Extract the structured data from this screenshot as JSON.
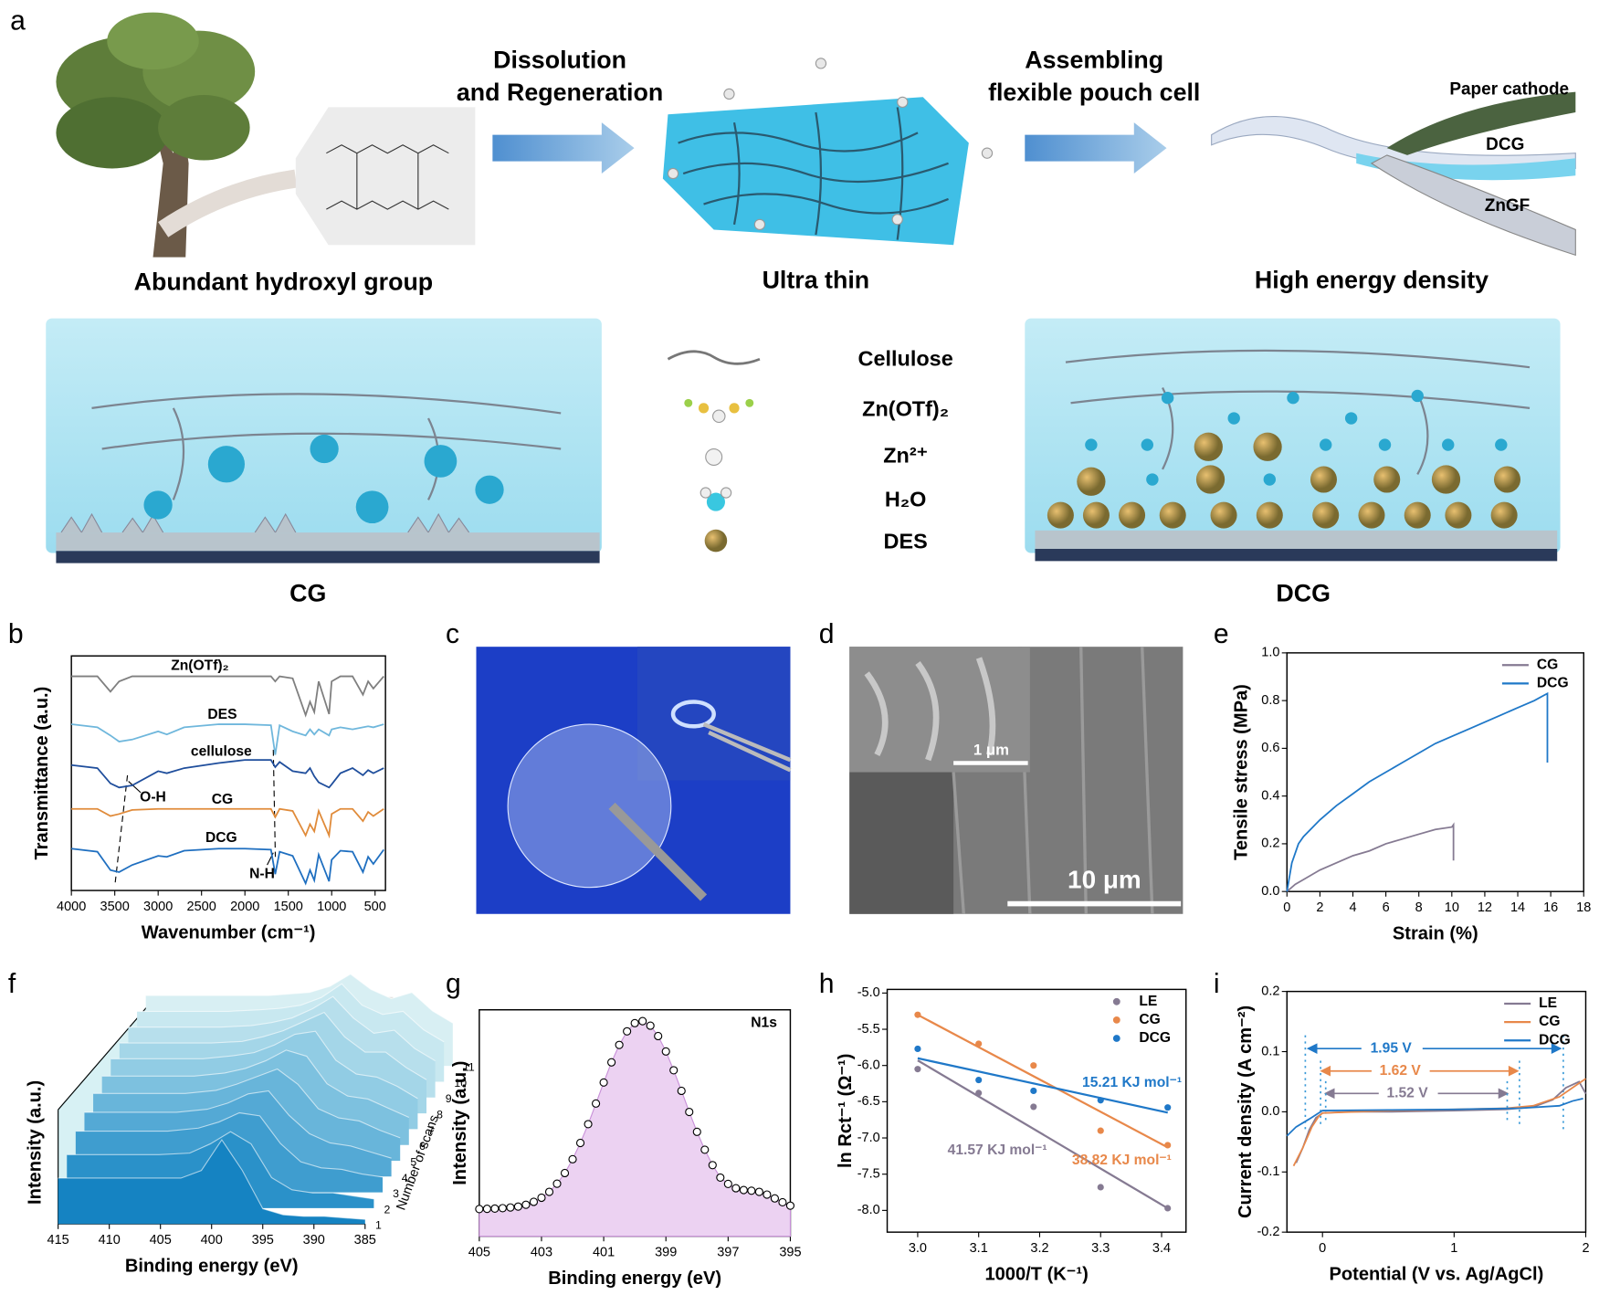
{
  "figure": {
    "panel_a": {
      "label": "a",
      "arrow_1": [
        "Dissolution",
        "and Regeneration"
      ],
      "arrow_2": [
        "Assembling",
        "flexible pouch cell"
      ],
      "captions": [
        "Abundant hydroxyl group",
        "Ultra thin",
        "High energy density"
      ],
      "cell_layers": [
        "Paper  cathode",
        "DCG",
        "ZnGF"
      ],
      "legend": [
        "Cellulose",
        "Zn(OTf)₂",
        "Zn²⁺",
        "H₂O",
        "DES"
      ],
      "gels": [
        "CG",
        "DCG"
      ]
    },
    "panel_c": {
      "label": "c"
    },
    "panel_d": {
      "label": "d",
      "scale_bars": [
        "1 μm",
        "10 μm"
      ]
    }
  },
  "chart_data": [
    {
      "label": "b",
      "type": "line",
      "xlabel": "Wavenumber (cm⁻¹)",
      "ylabel": "Transmittance (a.u.)",
      "xlim": [
        4000,
        380
      ],
      "ylim": [
        0,
        23
      ],
      "xticks": [
        4000,
        3500,
        3000,
        2500,
        2000,
        1500,
        1000,
        500
      ],
      "x": [
        4000,
        3700,
        3550,
        3450,
        3300,
        3000,
        2900,
        2700,
        2300,
        2000,
        1700,
        1650,
        1600,
        1450,
        1300,
        1250,
        1200,
        1150,
        1030,
        1000,
        900,
        760,
        640,
        580,
        520,
        400
      ],
      "series": [
        {
          "name": "Zn(OTf)₂",
          "color": "#7f7f7f",
          "values": [
            21,
            21,
            19.5,
            20.5,
            21,
            21,
            21,
            21,
            21,
            21,
            21,
            20.5,
            21,
            20.8,
            17.2,
            18.5,
            17.5,
            20.5,
            17.3,
            20.5,
            21,
            21,
            19.2,
            20.5,
            19.8,
            21
          ]
        },
        {
          "name": "DES",
          "color": "#6fb7dc",
          "values": [
            16.3,
            16,
            15.2,
            14.6,
            14.8,
            15.6,
            15.3,
            16,
            16.3,
            16.3,
            16.2,
            13.3,
            16.2,
            15.6,
            15.2,
            15.8,
            15.3,
            15.8,
            15.2,
            15.8,
            16,
            15.8,
            16,
            16.1,
            16,
            16.3
          ]
        },
        {
          "name": "cellulose",
          "color": "#1f4e9c",
          "values": [
            12.3,
            12,
            10.5,
            10.1,
            10.3,
            11.7,
            11.5,
            12,
            12.5,
            12.8,
            12.8,
            12.1,
            12.6,
            11.7,
            11.5,
            12,
            11.2,
            10.6,
            10.1,
            10.4,
            11.5,
            12,
            11.3,
            11.8,
            11.5,
            12
          ]
        },
        {
          "name": "CG",
          "color": "#e08b3a",
          "values": [
            8,
            8,
            7.3,
            7.5,
            7.9,
            8,
            8,
            8,
            8,
            8,
            8,
            7.2,
            8,
            7.8,
            5.4,
            6.5,
            5.8,
            7.8,
            5.4,
            7.5,
            8,
            8,
            6.8,
            7.7,
            7.3,
            8
          ]
        },
        {
          "name": "DCG",
          "color": "#1f6fc0",
          "values": [
            4.1,
            3.8,
            2,
            1.8,
            2.5,
            3.4,
            3.3,
            3.9,
            4.1,
            4.1,
            4,
            1.6,
            3.8,
            3.4,
            0.7,
            2,
            1,
            3.5,
            0.9,
            3,
            3.9,
            3.8,
            1.8,
            3.3,
            2.6,
            4
          ]
        }
      ],
      "annotations": [
        "O-H",
        "N-H"
      ]
    },
    {
      "label": "e",
      "type": "line",
      "xlabel": "Strain (%)",
      "ylabel": "Tensile stress (MPa)",
      "xlim": [
        0,
        18
      ],
      "ylim": [
        0,
        1
      ],
      "xticks": [
        0,
        2,
        4,
        6,
        8,
        10,
        12,
        14,
        16,
        18
      ],
      "yticks": [
        {
          "value": 0,
          "label": "0.0"
        },
        0.2,
        0.4,
        0.6,
        0.8,
        {
          "value": 1,
          "label": "1.0"
        }
      ],
      "legend": "upper right",
      "series": [
        {
          "name": "CG",
          "color": "#857a92",
          "x": [
            0,
            0.5,
            1,
            2,
            3,
            4,
            5,
            6,
            7,
            8,
            9,
            10,
            10.1,
            10.1
          ],
          "values": [
            0,
            0.03,
            0.05,
            0.09,
            0.12,
            0.15,
            0.17,
            0.2,
            0.22,
            0.24,
            0.26,
            0.27,
            0.28,
            0.13
          ]
        },
        {
          "name": "DCG",
          "color": "#1f78c8",
          "x": [
            0,
            0.3,
            0.7,
            1,
            2,
            3,
            4,
            5,
            6,
            7,
            8,
            9,
            10,
            11,
            12,
            13,
            14,
            15,
            15.8,
            15.8
          ],
          "values": [
            0,
            0.12,
            0.2,
            0.23,
            0.3,
            0.36,
            0.41,
            0.46,
            0.5,
            0.54,
            0.58,
            0.62,
            0.65,
            0.68,
            0.71,
            0.74,
            0.77,
            0.8,
            0.83,
            0.54
          ]
        }
      ]
    },
    {
      "label": "f",
      "type": "waterfall",
      "xlabel": "Binding energy (eV)",
      "ylabel": "Intensity (a.u.)",
      "zlabel": "Number of scans",
      "xlim": [
        415,
        385
      ],
      "ylim": [
        0,
        1
      ],
      "xticks": [
        415,
        410,
        405,
        400,
        395,
        390,
        385
      ],
      "x": [
        415,
        412,
        409,
        406,
        403,
        401,
        399,
        397,
        395,
        393,
        391,
        389,
        387,
        385
      ],
      "series": [
        {
          "name": "1",
          "color": "#1583c2",
          "values": [
            0.3,
            0.3,
            0.3,
            0.3,
            0.3,
            0.35,
            0.55,
            0.35,
            0.1,
            0.06,
            0.05,
            0.05,
            0.04,
            0.03
          ]
        },
        {
          "name": "2",
          "color": "#2a91c9",
          "values": [
            0.35,
            0.35,
            0.35,
            0.35,
            0.36,
            0.42,
            0.5,
            0.42,
            0.2,
            0.12,
            0.1,
            0.1,
            0.08,
            0.06
          ]
        },
        {
          "name": "3",
          "color": "#3f9dcf",
          "values": [
            0.4,
            0.4,
            0.4,
            0.4,
            0.42,
            0.46,
            0.52,
            0.5,
            0.32,
            0.2,
            0.16,
            0.15,
            0.12,
            0.1
          ]
        },
        {
          "name": "4",
          "color": "#54a9d5",
          "values": [
            0.42,
            0.42,
            0.42,
            0.42,
            0.44,
            0.48,
            0.54,
            0.56,
            0.4,
            0.28,
            0.22,
            0.2,
            0.16,
            0.12
          ]
        },
        {
          "name": "5",
          "color": "#68b5da",
          "values": [
            0.44,
            0.44,
            0.44,
            0.44,
            0.46,
            0.5,
            0.55,
            0.6,
            0.5,
            0.34,
            0.28,
            0.26,
            0.2,
            0.15
          ]
        },
        {
          "name": "6",
          "color": "#7dc1df",
          "values": [
            0.45,
            0.45,
            0.45,
            0.45,
            0.47,
            0.5,
            0.55,
            0.62,
            0.58,
            0.4,
            0.32,
            0.3,
            0.24,
            0.18
          ]
        },
        {
          "name": "7",
          "color": "#91cce4",
          "values": [
            0.46,
            0.46,
            0.46,
            0.46,
            0.48,
            0.5,
            0.55,
            0.62,
            0.64,
            0.45,
            0.36,
            0.34,
            0.28,
            0.2
          ]
        },
        {
          "name": "8",
          "color": "#a4d6e8",
          "values": [
            0.46,
            0.46,
            0.46,
            0.46,
            0.47,
            0.5,
            0.54,
            0.6,
            0.66,
            0.5,
            0.4,
            0.4,
            0.3,
            0.22
          ]
        },
        {
          "name": "9",
          "color": "#b7dfec",
          "values": [
            0.46,
            0.46,
            0.46,
            0.46,
            0.47,
            0.49,
            0.52,
            0.58,
            0.66,
            0.52,
            0.42,
            0.44,
            0.32,
            0.24
          ]
        },
        {
          "name": "10",
          "color": "#c8e8f0",
          "values": [
            0.46,
            0.46,
            0.46,
            0.46,
            0.47,
            0.48,
            0.5,
            0.55,
            0.64,
            0.5,
            0.44,
            0.46,
            0.34,
            0.26
          ]
        },
        {
          "name": "11",
          "color": "#d8eff3",
          "values": [
            0.46,
            0.46,
            0.46,
            0.46,
            0.46,
            0.47,
            0.48,
            0.52,
            0.6,
            0.5,
            0.44,
            0.48,
            0.36,
            0.28
          ]
        }
      ]
    },
    {
      "label": "g",
      "type": "scatter",
      "xlabel": "Binding energy (eV)",
      "ylabel": "Intensity (a.u.)",
      "xlim": [
        405,
        395
      ],
      "ylim": [
        0,
        1
      ],
      "xticks": [
        405,
        403,
        401,
        399,
        397,
        395
      ],
      "area": true,
      "x": [
        405,
        404.75,
        404.5,
        404.25,
        404,
        403.75,
        403.5,
        403.25,
        403,
        402.75,
        402.5,
        402.25,
        402,
        401.75,
        401.5,
        401.25,
        401,
        400.75,
        400.5,
        400.25,
        400,
        399.75,
        399.5,
        399.25,
        399,
        398.75,
        398.5,
        398.25,
        398,
        397.75,
        397.5,
        397.25,
        397,
        396.75,
        396.5,
        396.25,
        396,
        395.75,
        395.5,
        395.25,
        395
      ],
      "series": [
        {
          "color": "#000000",
          "fill": "#ecd2f2",
          "values": [
            0.12,
            0.121,
            0.122,
            0.124,
            0.127,
            0.131,
            0.139,
            0.152,
            0.17,
            0.196,
            0.232,
            0.279,
            0.34,
            0.412,
            0.495,
            0.586,
            0.679,
            0.768,
            0.845,
            0.905,
            0.941,
            0.95,
            0.93,
            0.884,
            0.816,
            0.733,
            0.642,
            0.549,
            0.461,
            0.382,
            0.314,
            0.259,
            0.231,
            0.212,
            0.204,
            0.201,
            0.196,
            0.184,
            0.167,
            0.15,
            0.135
          ]
        }
      ],
      "annotations": [
        "N1s"
      ]
    },
    {
      "label": "h",
      "type": "scatter",
      "xlabel": "1000/T (K⁻¹)",
      "ylabel": "ln Rct⁻¹ (Ω⁻¹)",
      "xlim": [
        2.95,
        3.44
      ],
      "ylim": [
        -8.3,
        -4.95
      ],
      "xticks": [
        {
          "value": 3,
          "label": "3.0"
        },
        3.1,
        3.2,
        3.3,
        3.4
      ],
      "yticks": [
        {
          "value": -5,
          "label": "-5.0"
        },
        -5.5,
        {
          "value": -6,
          "label": "-6.0"
        },
        -6.5,
        {
          "value": -7,
          "label": "-7.0"
        },
        -7.5,
        {
          "value": -8,
          "label": "-8.0"
        }
      ],
      "legend": "upper right",
      "series": [
        {
          "name": "LE",
          "color": "#857a92",
          "x": [
            3.0,
            3.1,
            3.19,
            3.3,
            3.41
          ],
          "values": [
            -6.05,
            -6.38,
            -6.57,
            -7.68,
            -7.97
          ],
          "fit_x": [
            3.0,
            3.41
          ],
          "fit_values": [
            -5.93,
            -7.97
          ]
        },
        {
          "name": "CG",
          "color": "#e8884a",
          "x": [
            3.0,
            3.1,
            3.19,
            3.3,
            3.41
          ],
          "values": [
            -5.3,
            -5.7,
            -6.0,
            -6.9,
            -7.1
          ],
          "fit_x": [
            3.0,
            3.41
          ],
          "fit_values": [
            -5.3,
            -7.13
          ]
        },
        {
          "name": "DCG",
          "color": "#1f78c8",
          "x": [
            3.0,
            3.1,
            3.19,
            3.3,
            3.41
          ],
          "values": [
            -5.77,
            -6.2,
            -6.35,
            -6.48,
            -6.58
          ],
          "fit_x": [
            3.0,
            3.41
          ],
          "fit_values": [
            -5.9,
            -6.65
          ]
        }
      ],
      "annotations": [
        {
          "text": "15.21 KJ mol⁻¹",
          "color": "#1f78c8"
        },
        {
          "text": "38.82 KJ mol⁻¹",
          "color": "#e8884a"
        },
        {
          "text": "41.57 KJ mol⁻¹",
          "color": "#857a92"
        }
      ]
    },
    {
      "label": "i",
      "type": "line",
      "xlabel": "Potential (V vs. Ag/AgCl)",
      "ylabel": "Current density (A cm⁻²)",
      "xlim": [
        -0.27,
        2
      ],
      "ylim": [
        -0.2,
        0.2
      ],
      "xticks": [
        0,
        1,
        2
      ],
      "yticks": [
        -0.2,
        -0.1,
        {
          "value": 0,
          "label": "0.0"
        },
        0.1,
        0.2
      ],
      "legend": "upper right",
      "series": [
        {
          "name": "LE",
          "color": "#857a92",
          "x": [
            -0.2,
            -0.15,
            -0.1,
            -0.05,
            0,
            0.2,
            0.5,
            1,
            1.4,
            1.6,
            1.75,
            1.85,
            1.95,
            2
          ],
          "values": [
            -0.085,
            -0.06,
            -0.03,
            -0.01,
            -0.002,
            0,
            0,
            0.002,
            0.004,
            0.008,
            0.02,
            0.04,
            0.05,
            0.03
          ]
        },
        {
          "name": "CG",
          "color": "#e8884a",
          "x": [
            -0.22,
            -0.15,
            -0.08,
            -0.03,
            0,
            0.5,
            1,
            1.4,
            1.6,
            1.8,
            1.9,
            2
          ],
          "values": [
            -0.09,
            -0.06,
            -0.025,
            -0.008,
            -0.002,
            0.002,
            0.004,
            0.006,
            0.01,
            0.025,
            0.04,
            0.055
          ]
        },
        {
          "name": "DCG",
          "color": "#1f78c8",
          "x": [
            -0.27,
            -0.2,
            -0.1,
            0,
            0.5,
            1,
            1.5,
            1.8,
            1.9,
            1.98
          ],
          "values": [
            -0.04,
            -0.025,
            -0.012,
            0.002,
            0.003,
            0.004,
            0.006,
            0.01,
            0.018,
            0.022
          ]
        }
      ],
      "annotations": [
        {
          "text": "1.95 V",
          "color": "#1f78c8"
        },
        {
          "text": "1.62 V",
          "color": "#e8884a"
        },
        {
          "text": "1.52 V",
          "color": "#857a92"
        }
      ]
    }
  ]
}
